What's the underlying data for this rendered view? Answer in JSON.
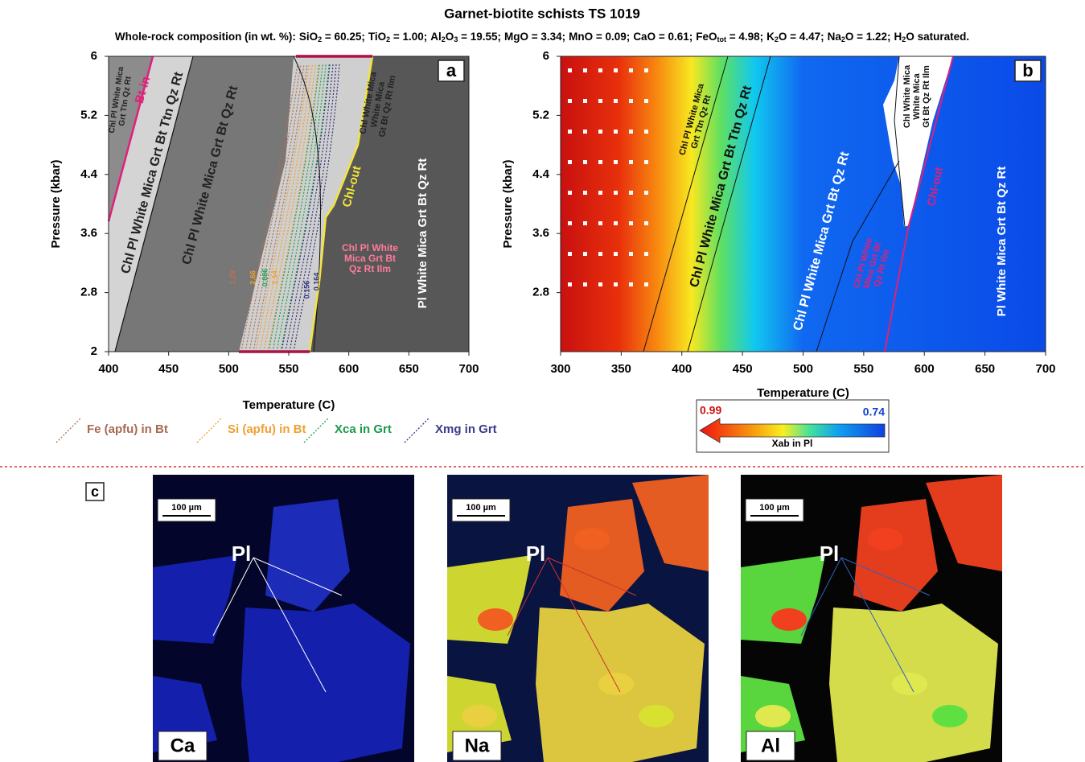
{
  "title": "Garnet-biotite schists TS 1019",
  "composition": {
    "intro": "Whole-rock composition (in wt. %):",
    "items": [
      [
        "SiO",
        "2",
        " = 60.25;"
      ],
      [
        "TiO",
        "2",
        " = 1.00;"
      ],
      [
        "Al",
        "2",
        "O",
        "3",
        " = 19.55;"
      ],
      [
        "MgO = 3.34;"
      ],
      [
        "MnO = 0.09;"
      ],
      [
        "CaO = 0.61;"
      ],
      [
        "FeO",
        "tot",
        " = 4.98;"
      ],
      [
        "K",
        "2",
        "O = 4.47;"
      ],
      [
        "Na",
        "2",
        "O = 1.22;"
      ],
      [
        "H",
        "2",
        "O saturated."
      ]
    ]
  },
  "panels": [
    {
      "label": "a",
      "xlabel": "Temperature (C)",
      "ylabel": "Pressure (kbar)",
      "xlim": [
        400,
        700
      ],
      "ylim": [
        2,
        6
      ],
      "xticks": [
        400,
        450,
        500,
        550,
        600,
        650,
        700
      ],
      "yticks": [
        2,
        2.8,
        3.6,
        4.4,
        5.2,
        6
      ],
      "fields": [
        [
          "Chl Pl White Mica",
          "Grt Ttn Qz Rt"
        ],
        [
          "Bt-in"
        ],
        [
          "Chl Pl White Mica Grt Bt Ttn Qz Rt"
        ],
        [
          "Chl Pl White Mica Grt Bt Qz Rt"
        ],
        [
          "Chl White Mica",
          "White Mica",
          "Gt Bt Qz Rt Ilm"
        ],
        [
          "Chl-out"
        ],
        [
          "Chl Pl White",
          "Mica Grt Bt",
          "Qz Rt Ilm"
        ],
        [
          "Pl White Mica Grt Bt Qz Rt"
        ]
      ],
      "isopleth_labels": [
        "1.29",
        "2.66",
        "0.086",
        "1.14",
        "0.156",
        "0.164"
      ],
      "legend": [
        "Fe (apfu) in Bt",
        "Si (apfu) in Bt",
        "Xca in Grt",
        "Xmg in Grt"
      ]
    },
    {
      "label": "b",
      "xlabel": "Temperature (C)",
      "ylabel": "Pressure (kbar)",
      "xlim": [
        300,
        700
      ],
      "ylim": [
        2,
        6
      ],
      "xticks": [
        300,
        350,
        400,
        450,
        500,
        550,
        600,
        650,
        700
      ],
      "yticks": [
        2.8,
        3.6,
        4.4,
        5.2,
        6
      ],
      "fields": [
        [
          "Chl Pl White Mica",
          "Grt Ttn Qz Rt"
        ],
        [
          "Chl Pl White Mica Grt Bt Ttn Qz Rt"
        ],
        [
          "Chl Pl White Mica Grt Bt Qz Rt"
        ],
        [
          "Chl White Mica",
          "White Mica",
          "Gt Bt Qz Rt Ilm"
        ],
        [
          "Chl-out"
        ],
        [
          "Chl Pl White",
          "Mica Grt Bt",
          "Qz Rt Ilm"
        ],
        [
          "Pl White Mica Grt Bt Qz Rt"
        ]
      ],
      "colorbar": {
        "max": 0.99,
        "min": 0.74,
        "label": "Xab in Pl"
      }
    }
  ],
  "maps": {
    "label": "c",
    "items": [
      {
        "element": "Ca",
        "scale": "100 µm",
        "mineral": "Pl"
      },
      {
        "element": "Na",
        "scale": "100 µm",
        "mineral": "Pl"
      },
      {
        "element": "Al",
        "scale": "100 µm",
        "mineral": "Pl"
      }
    ]
  }
}
